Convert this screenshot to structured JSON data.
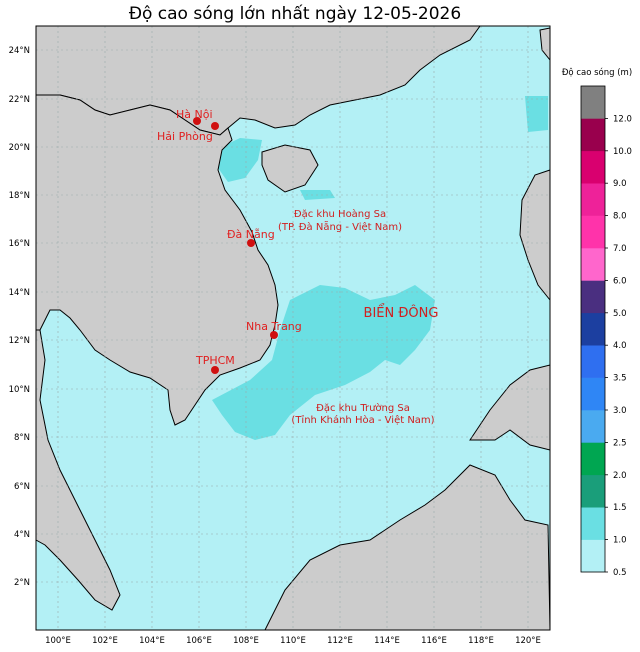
{
  "title": "Độ cao sóng lớn nhất ngày 12-05-2026",
  "colorbar": {
    "title": "Độ cao sóng (m)",
    "levels": [
      0.5,
      1.0,
      1.5,
      2.0,
      2.5,
      3.0,
      3.5,
      4.0,
      5.0,
      6.0,
      7.0,
      8.0,
      9.0,
      10.0,
      12.0
    ],
    "level_labels": [
      "0.5",
      "1.0",
      "1.5",
      "2.0",
      "2.5",
      "3.0",
      "3.5",
      "4.0",
      "5.0",
      "6.0",
      "7.0",
      "8.0",
      "9.0",
      "10.0",
      "12.0"
    ],
    "colors": [
      "#b3f0f5",
      "#6adfe3",
      "#1a9e7a",
      "#00a651",
      "#4aaaf0",
      "#2f86f5",
      "#2f6ff0",
      "#1c3fa0",
      "#4a2f80",
      "#ff66cc",
      "#ff33aa",
      "#ee2299",
      "#d9006f",
      "#99004d",
      "#808080"
    ]
  },
  "axes": {
    "lat_labels": [
      "2°N",
      "4°N",
      "6°N",
      "8°N",
      "10°N",
      "12°N",
      "14°N",
      "16°N",
      "18°N",
      "20°N",
      "22°N",
      "24°N"
    ],
    "lon_labels": [
      "100°E",
      "102°E",
      "104°E",
      "106°E",
      "108°E",
      "110°E",
      "112°E",
      "114°E",
      "116°E",
      "118°E",
      "120°E"
    ]
  },
  "cities": [
    {
      "name": "Hà Nội"
    },
    {
      "name": "Hải Phòng"
    },
    {
      "name": "Đà Nẵng"
    },
    {
      "name": "Nha Trang"
    },
    {
      "name": "TPHCM"
    }
  ],
  "labels": {
    "hoang_sa_1": "Đặc khu Hoàng Sa",
    "hoang_sa_2": "(TP. Đà Nẵng - Việt Nam)",
    "truong_sa_1": "Đặc khu Trường Sa",
    "truong_sa_2": "(Tỉnh Khánh Hòa - Việt Nam)",
    "bien_dong": "BIỂN ĐÔNG"
  },
  "map_colors": {
    "sea_low": "#b3f0f5",
    "sea_mid": "#6adfe3",
    "land": "#cccccc",
    "city_marker": "#d01010"
  }
}
